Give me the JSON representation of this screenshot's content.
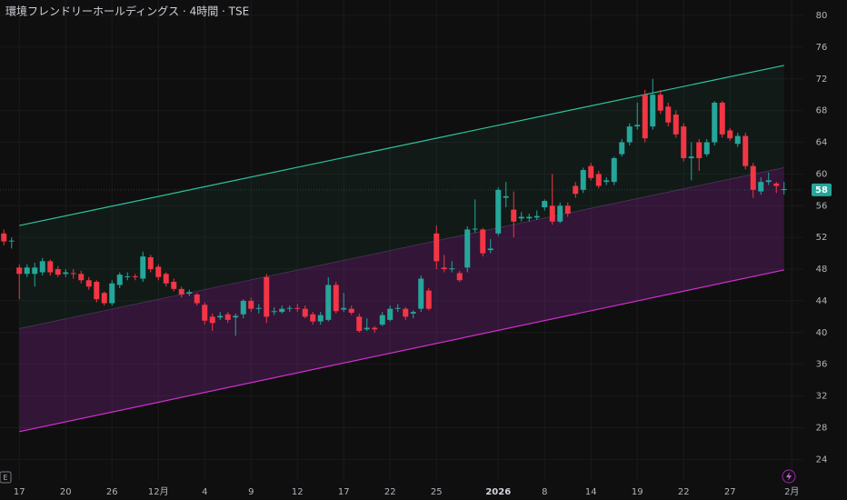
{
  "chart_data": {
    "type": "candlestick",
    "title": "環境フレンドリーホールディングス · 4時間 · TSE",
    "corner_label": "E",
    "up_color": "#26a69a",
    "down_color": "#f23645",
    "x": [
      0,
      1,
      2,
      3,
      4,
      5,
      6,
      7,
      8,
      9,
      10,
      11,
      12,
      13,
      14,
      15,
      16,
      17,
      18,
      19,
      20,
      21,
      22,
      23,
      24,
      25,
      26,
      27,
      28,
      29,
      30,
      31,
      32,
      33,
      34,
      35,
      36,
      37,
      38,
      39,
      40,
      41,
      42,
      43,
      44,
      45,
      46,
      47,
      48,
      49,
      50,
      51,
      52,
      53,
      54,
      55,
      56,
      57,
      58,
      59,
      60,
      61,
      62,
      63,
      64,
      65,
      66,
      67,
      68,
      69,
      70,
      71,
      72,
      73,
      74,
      75,
      76,
      77,
      78,
      79,
      80,
      81,
      82,
      83,
      84,
      85,
      86,
      87,
      88,
      89,
      90,
      91,
      92,
      93,
      94,
      95,
      96,
      97,
      98,
      99,
      100,
      101
    ],
    "open": [
      52.5,
      51.5,
      48.2,
      47.4,
      47.4,
      47.6,
      49,
      48,
      47.4,
      47.5,
      47.4,
      46.6,
      46.4,
      45,
      43.7,
      46,
      47,
      47.1,
      46.8,
      49.5,
      48.3,
      47.4,
      46.4,
      45.5,
      44.9,
      44.8,
      43.5,
      42,
      41.9,
      42.3,
      41.9,
      42.3,
      44,
      43,
      47,
      42.6,
      42.6,
      43,
      43.1,
      43,
      42.3,
      41.4,
      41.6,
      46,
      42.9,
      43,
      42,
      40.4,
      40.6,
      41,
      41.6,
      43,
      43,
      42.4,
      43,
      45.3,
      52.5,
      48.2,
      48,
      47.5,
      48.2,
      53,
      53,
      50.4,
      52.5,
      57,
      55.5,
      54.4,
      54.4,
      54.5,
      55.8,
      56,
      54,
      56,
      58.5,
      58,
      61,
      60,
      59,
      59,
      62.5,
      64,
      66,
      70,
      66,
      70,
      68.5,
      67.5,
      66,
      62,
      64,
      62.5,
      64,
      69,
      65.5,
      63.8,
      64.8,
      61,
      57.8,
      59,
      58.8,
      58
    ],
    "high": [
      53,
      52,
      48.6,
      48.6,
      48.8,
      49.4,
      49.2,
      48.4,
      48,
      48,
      47.8,
      47,
      46.6,
      45.2,
      46.6,
      47.6,
      47.6,
      47.4,
      50.2,
      49.8,
      48.6,
      47.6,
      46.8,
      45.8,
      45.4,
      45,
      43.8,
      42.4,
      42.6,
      42.6,
      42.4,
      44.2,
      44.4,
      43.6,
      47.4,
      43.2,
      43.4,
      43.4,
      43.6,
      43.4,
      42.6,
      42.6,
      47,
      46.4,
      45,
      43.4,
      42.4,
      41.8,
      40.8,
      42.6,
      43.4,
      43.6,
      43.2,
      42.8,
      47.2,
      45.6,
      53.5,
      49.8,
      49,
      47.8,
      53.4,
      56.8,
      53.2,
      51.8,
      58.3,
      59,
      57.8,
      55.2,
      55,
      55.4,
      56.8,
      60,
      56.4,
      56.4,
      59,
      60.8,
      61.4,
      60.4,
      59.6,
      62.2,
      64.4,
      66.4,
      69,
      70.6,
      72,
      70.6,
      69,
      68,
      66.4,
      64,
      64.4,
      64.4,
      69.2,
      69.2,
      65.8,
      65.2,
      65.2,
      61.4,
      59.6,
      60.2,
      59,
      59
    ],
    "low": [
      51,
      50.6,
      44.2,
      47,
      45.8,
      47.2,
      47.2,
      47,
      47,
      46.8,
      46.2,
      45.4,
      43.8,
      43.4,
      43.4,
      45.6,
      46.6,
      46.6,
      46.4,
      47.6,
      46.6,
      45.8,
      45.2,
      44.4,
      44.6,
      43.4,
      41,
      40.2,
      41.6,
      41.2,
      39.6,
      41.8,
      42.6,
      42.4,
      41.2,
      42.2,
      42.4,
      42.6,
      42.6,
      41.8,
      41,
      41,
      41.4,
      42.4,
      42.6,
      42.2,
      40,
      40.2,
      40,
      40.8,
      41.4,
      42.6,
      41.6,
      41.8,
      42.6,
      42.8,
      48,
      47.6,
      47.6,
      46.4,
      47.6,
      52.6,
      49.6,
      50,
      52.2,
      55.8,
      52,
      54,
      54,
      54.2,
      55.4,
      53.6,
      53.8,
      54.6,
      57,
      57.6,
      59.2,
      58.2,
      58.6,
      58.6,
      62.2,
      63.6,
      65.6,
      64,
      65.6,
      67.6,
      66,
      64.6,
      61.6,
      59.2,
      60.4,
      62.2,
      63.6,
      64.6,
      64.2,
      63.4,
      60.6,
      57,
      57.4,
      58.6,
      57.6,
      57.4
    ],
    "close": [
      51.5,
      51.6,
      47.4,
      48.2,
      48.2,
      49,
      47.6,
      47.3,
      47.6,
      47.4,
      46.6,
      45.8,
      44.2,
      43.7,
      46.2,
      47.3,
      47.1,
      47,
      49.6,
      48,
      47,
      46.2,
      45.5,
      44.8,
      45.1,
      43.7,
      41.5,
      41.2,
      42.1,
      41.6,
      42.1,
      44,
      43,
      43.1,
      42,
      42.7,
      43,
      43.1,
      43,
      42,
      41.4,
      42.2,
      46,
      42.7,
      43.1,
      42.5,
      40.2,
      40.6,
      40.4,
      42.2,
      43,
      43.1,
      42,
      42.6,
      46.8,
      43,
      49,
      48,
      48.1,
      46.6,
      53,
      53.1,
      50,
      50.6,
      58,
      57.2,
      54,
      54.6,
      54.6,
      54.7,
      56.6,
      54,
      56,
      55,
      57.5,
      60.5,
      59.5,
      58.5,
      59.2,
      62,
      64,
      66,
      66.2,
      64.5,
      70,
      68,
      66.5,
      65,
      62,
      62.2,
      62,
      64,
      69,
      65,
      64.5,
      64.8,
      61,
      58,
      59,
      59.2,
      58.5,
      58.1
    ],
    "channel": {
      "x": [
        2,
        101
      ],
      "upper": [
        53.5,
        73.7
      ],
      "middle": [
        40.5,
        60.8
      ],
      "lower": [
        27.5,
        47.9
      ],
      "upper_color": "#2ec4a0",
      "lower_color": "#d12fd1"
    },
    "last_price": 58,
    "xlim": [
      -0.5,
      103.5
    ],
    "ylim": [
      21.4,
      81.95
    ],
    "yticks": [
      24,
      28,
      32,
      36,
      40,
      44,
      48,
      52,
      56,
      60,
      64,
      68,
      72,
      76,
      80
    ],
    "xticks": [
      {
        "value": 2,
        "label": "17"
      },
      {
        "value": 8,
        "label": "20"
      },
      {
        "value": 14,
        "label": "26"
      },
      {
        "value": 20,
        "label": "12月"
      },
      {
        "value": 26,
        "label": "4"
      },
      {
        "value": 32,
        "label": "9"
      },
      {
        "value": 38,
        "label": "12"
      },
      {
        "value": 44,
        "label": "17"
      },
      {
        "value": 50,
        "label": "22"
      },
      {
        "value": 56,
        "label": "25"
      },
      {
        "value": 64,
        "label": "2026"
      },
      {
        "value": 70,
        "label": "8"
      },
      {
        "value": 76,
        "label": "14"
      },
      {
        "value": 82,
        "label": "19"
      },
      {
        "value": 88,
        "label": "22"
      },
      {
        "value": 94,
        "label": "27"
      },
      {
        "value": 102,
        "label": "2月"
      }
    ],
    "grid": true
  }
}
